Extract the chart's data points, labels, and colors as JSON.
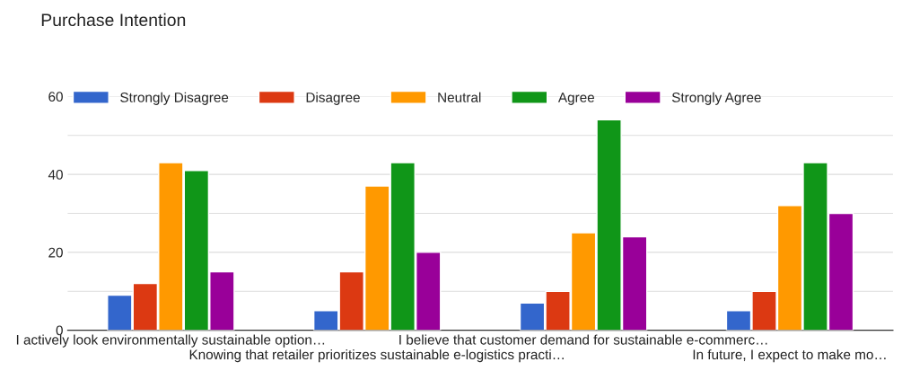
{
  "chart_data": {
    "type": "bar",
    "title": "Purchase Intention",
    "categories": [
      "I actively look environmentally sustainable option…",
      "Knowing that retailer prioritizes sustainable e-logistics practi…",
      "I believe that customer demand for sustainable e-commerc…",
      "In future, I expect to make mo…"
    ],
    "series": [
      {
        "name": "Strongly Disagree",
        "color": "#3366cc",
        "values": [
          9,
          5,
          7,
          5
        ]
      },
      {
        "name": "Disagree",
        "color": "#dc3912",
        "values": [
          12,
          15,
          10,
          10
        ]
      },
      {
        "name": "Neutral",
        "color": "#ff9900",
        "values": [
          43,
          37,
          25,
          32
        ]
      },
      {
        "name": "Agree",
        "color": "#109618",
        "values": [
          41,
          43,
          54,
          43
        ]
      },
      {
        "name": "Strongly Agree",
        "color": "#990099",
        "values": [
          15,
          20,
          24,
          30
        ]
      }
    ],
    "ylim": [
      0,
      60
    ],
    "yticks": [
      0,
      {
        "value": 10,
        "label": null
      },
      20,
      {
        "value": 30,
        "label": null
      },
      40,
      {
        "value": 50,
        "label": null
      },
      60
    ],
    "grid": "y",
    "legend": "top left"
  }
}
